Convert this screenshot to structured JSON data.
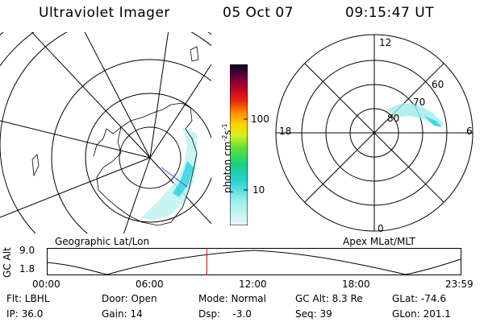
{
  "header": {
    "instrument": "Ultraviolet Imager",
    "date": "05 Oct 07",
    "time": "09:15:47 UT"
  },
  "colorbar": {
    "unit_label": "photon cm",
    "unit_exp1": "-2",
    "unit_mid": "s",
    "unit_exp2": "-1",
    "tick_100": "100",
    "tick_10": "10"
  },
  "panels": {
    "geographic_label": "Geographic Lat/Lon",
    "apex_label": "Apex MLat/MLT"
  },
  "apex_plot": {
    "mlt_12": "12",
    "mlt_18": "18",
    "mlt_6": "6",
    "mlt_0": "0",
    "lat_60": "60",
    "lat_70": "70",
    "lat_80": "80"
  },
  "altitude_plot": {
    "axis_label": "GC Alt",
    "y_top": "9.0",
    "y_bottom": "1.8",
    "x_ticks": [
      "00:00",
      "06:00",
      "12:00",
      "18:00",
      "23:59"
    ],
    "current_time_hours": 9.26
  },
  "info": {
    "flt": "Flt: LBHL",
    "ip": "IP: 36.0",
    "door": "Door: Open",
    "gain": "Gain: 14",
    "mode": "Mode: Normal",
    "dsp": "Dsp:    -3.0",
    "gc_alt": "GC Alt: 8.3 Re",
    "seq": "Seq: 39",
    "glat": "GLat: -74.6",
    "glon": "GLon: 201.1"
  },
  "colors": {
    "aurora_cyan": "#7fe8e8",
    "aurora_bright": "#27d3e0",
    "time_marker": "#cc0000"
  }
}
